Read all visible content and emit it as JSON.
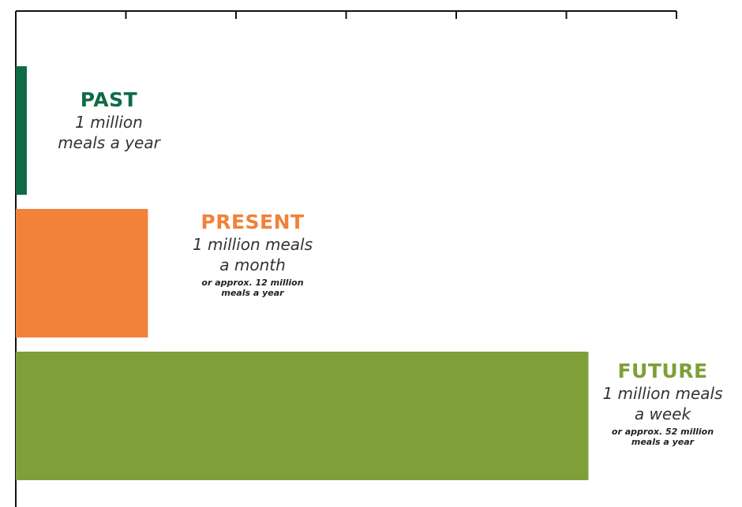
{
  "chart_data": {
    "type": "bar",
    "orientation": "horizontal",
    "categories": [
      "PAST",
      "PRESENT",
      "FUTURE"
    ],
    "values": [
      1,
      12,
      52
    ],
    "xlim": [
      0,
      60
    ],
    "xticks": [
      0,
      10,
      20,
      30,
      40,
      50,
      60
    ],
    "tick_labels_shown": false,
    "grid": false,
    "bars": [
      {
        "name": "PAST",
        "rate": "1 million\nmeals a year",
        "note": "",
        "value": 1,
        "color": "#0e6b46"
      },
      {
        "name": "PRESENT",
        "rate": "1 million meals\na month",
        "note": "or approx. 12 million\nmeals a year",
        "value": 12,
        "color": "#f2813a"
      },
      {
        "name": "FUTURE",
        "rate": "1 million meals\na week",
        "note": "or approx. 52 million\nmeals a year",
        "value": 52,
        "color": "#7f9f38"
      }
    ]
  }
}
